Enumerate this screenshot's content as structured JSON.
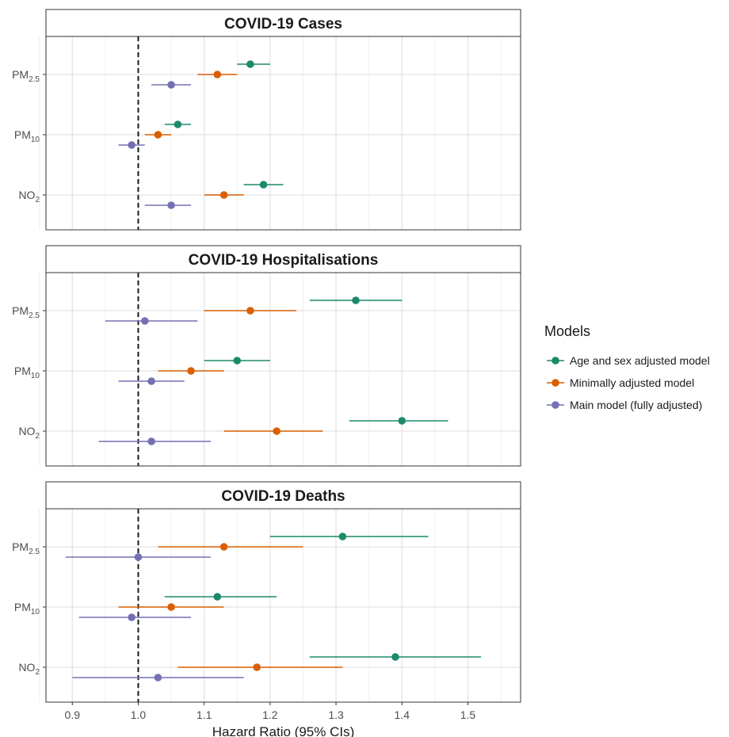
{
  "chart_data": {
    "type": "scatter",
    "subtype": "forest-plot",
    "xlabel": "Hazard Ratio (95% CIs)",
    "xlim": [
      0.86,
      1.58
    ],
    "xticks": [
      0.9,
      1.0,
      1.1,
      1.2,
      1.3,
      1.4,
      1.5
    ],
    "xtick_labels": [
      "0.9",
      "1.0",
      "1.1",
      "1.2",
      "1.3",
      "1.4",
      "1.5"
    ],
    "reference_line": 1.0,
    "grid": true,
    "legend": {
      "title": "Models",
      "placement": "right",
      "entries": [
        "Age and sex adjusted model",
        "Minimally adjusted model",
        "Main model (fully adjusted)"
      ]
    },
    "colors": {
      "Age and sex adjusted model": "#1b8a6b",
      "Minimally adjusted model": "#d95f02",
      "Main model (fully adjusted)": "#7570b3"
    },
    "pollutants": [
      {
        "base": "PM",
        "sub": "2.5"
      },
      {
        "base": "PM",
        "sub": "10"
      },
      {
        "base": "NO",
        "sub": "2"
      }
    ],
    "panels": [
      {
        "title": "COVID-19 Cases",
        "series": [
          {
            "name": "Age and sex adjusted model",
            "hr": [
              1.17,
              1.06,
              1.19
            ],
            "lo": [
              1.15,
              1.04,
              1.16
            ],
            "hi": [
              1.2,
              1.08,
              1.22
            ]
          },
          {
            "name": "Minimally adjusted model",
            "hr": [
              1.12,
              1.03,
              1.13
            ],
            "lo": [
              1.09,
              1.01,
              1.1
            ],
            "hi": [
              1.15,
              1.05,
              1.16
            ]
          },
          {
            "name": "Main model (fully adjusted)",
            "hr": [
              1.05,
              0.99,
              1.05
            ],
            "lo": [
              1.02,
              0.97,
              1.01
            ],
            "hi": [
              1.08,
              1.01,
              1.08
            ]
          }
        ]
      },
      {
        "title": "COVID-19 Hospitalisations",
        "series": [
          {
            "name": "Age and sex adjusted model",
            "hr": [
              1.33,
              1.15,
              1.4
            ],
            "lo": [
              1.26,
              1.1,
              1.32
            ],
            "hi": [
              1.4,
              1.2,
              1.47
            ]
          },
          {
            "name": "Minimally adjusted model",
            "hr": [
              1.17,
              1.08,
              1.21
            ],
            "lo": [
              1.1,
              1.03,
              1.13
            ],
            "hi": [
              1.24,
              1.13,
              1.28
            ]
          },
          {
            "name": "Main model (fully adjusted)",
            "hr": [
              1.01,
              1.02,
              1.02
            ],
            "lo": [
              0.95,
              0.97,
              0.94
            ],
            "hi": [
              1.09,
              1.07,
              1.11
            ]
          }
        ]
      },
      {
        "title": "COVID-19 Deaths",
        "series": [
          {
            "name": "Age and sex adjusted model",
            "hr": [
              1.31,
              1.12,
              1.39
            ],
            "lo": [
              1.2,
              1.04,
              1.26
            ],
            "hi": [
              1.44,
              1.21,
              1.52
            ]
          },
          {
            "name": "Minimally adjusted model",
            "hr": [
              1.13,
              1.05,
              1.18
            ],
            "lo": [
              1.03,
              0.97,
              1.06
            ],
            "hi": [
              1.25,
              1.13,
              1.31
            ]
          },
          {
            "name": "Main model (fully adjusted)",
            "hr": [
              1.0,
              0.99,
              1.03
            ],
            "lo": [
              0.89,
              0.91,
              0.9
            ],
            "hi": [
              1.11,
              1.08,
              1.16
            ]
          }
        ]
      }
    ]
  }
}
